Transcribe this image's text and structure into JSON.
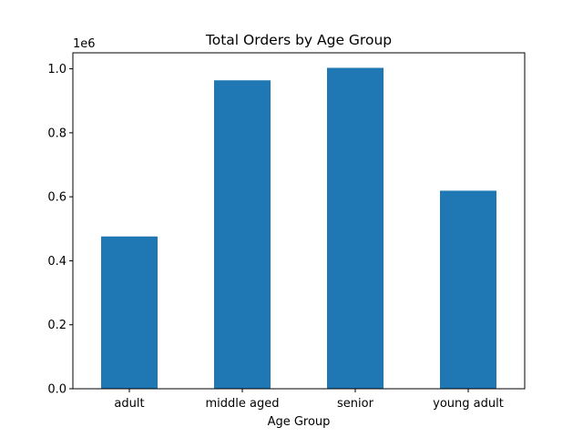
{
  "chart_data": {
    "type": "bar",
    "title": "Total Orders by Age Group",
    "xlabel": "Age Group",
    "ylabel": "",
    "offset_label": "1e6",
    "categories": [
      "adult",
      "middle aged",
      "senior",
      "young adult"
    ],
    "values": [
      476000,
      964000,
      1003000,
      619000
    ],
    "ylim": [
      0,
      1050000
    ],
    "yticks": [
      0,
      200000,
      400000,
      600000,
      800000,
      1000000
    ],
    "ytick_labels": [
      "0.0",
      "0.2",
      "0.4",
      "0.6",
      "0.8",
      "1.0"
    ],
    "bar_color": "#1f77b4",
    "grid": false,
    "legend": null
  }
}
